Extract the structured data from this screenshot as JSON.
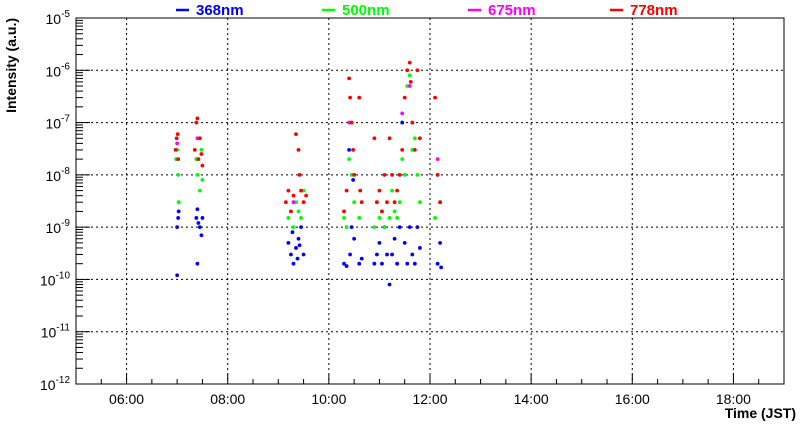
{
  "chart_data": {
    "type": "scatter",
    "xlabel": "Time (JST)",
    "ylabel": "Intensity (a.u.)",
    "x_unit": "hours JST",
    "xlim": [
      5.0,
      19.0
    ],
    "ylim": [
      1e-12,
      1e-05
    ],
    "y_scale": "log",
    "grid": true,
    "legend_position": "top",
    "x_ticks": [
      {
        "value": 6,
        "label": "06:00"
      },
      {
        "value": 8,
        "label": "08:00"
      },
      {
        "value": 10,
        "label": "10:00"
      },
      {
        "value": 12,
        "label": "12:00"
      },
      {
        "value": 14,
        "label": "14:00"
      },
      {
        "value": 16,
        "label": "16:00"
      },
      {
        "value": 18,
        "label": "18:00"
      }
    ],
    "y_ticks": [
      {
        "value": 1e-12,
        "exp": "-12",
        "base": "10"
      },
      {
        "value": 1e-11,
        "exp": "-11",
        "base": "10"
      },
      {
        "value": 1e-10,
        "exp": "-10",
        "base": "10"
      },
      {
        "value": 1e-09,
        "exp": "-9",
        "base": "10"
      },
      {
        "value": 1e-08,
        "exp": "-8",
        "base": "10"
      },
      {
        "value": 1e-07,
        "exp": "-7",
        "base": "10"
      },
      {
        "value": 1e-06,
        "exp": "-6",
        "base": "10"
      },
      {
        "value": 1e-05,
        "exp": "-5",
        "base": "10"
      }
    ],
    "series": [
      {
        "name": "368nm",
        "color": "#0000ff",
        "points": [
          [
            7.0,
            1.2e-10
          ],
          [
            7.0,
            1e-09
          ],
          [
            7.03,
            2e-09
          ],
          [
            7.02,
            1.5e-09
          ],
          [
            7.4,
            2e-10
          ],
          [
            7.38,
            1.5e-09
          ],
          [
            7.42,
            1.2e-09
          ],
          [
            7.45,
            1e-09
          ],
          [
            7.48,
            7e-10
          ],
          [
            7.5,
            1.5e-09
          ],
          [
            7.4,
            2.2e-09
          ],
          [
            9.2,
            5e-10
          ],
          [
            9.25,
            3e-10
          ],
          [
            9.3,
            2e-10
          ],
          [
            9.35,
            4e-10
          ],
          [
            9.4,
            6e-10
          ],
          [
            9.45,
            1e-09
          ],
          [
            9.5,
            3e-10
          ],
          [
            9.28,
            8e-10
          ],
          [
            9.38,
            2.5e-10
          ],
          [
            9.42,
            4.5e-10
          ],
          [
            10.3,
            2e-10
          ],
          [
            10.35,
            1.8e-10
          ],
          [
            10.4,
            3e-08
          ],
          [
            10.45,
            1e-09
          ],
          [
            10.5,
            6e-10
          ],
          [
            10.42,
            3e-10
          ],
          [
            10.48,
            8e-09
          ],
          [
            10.6,
            2e-10
          ],
          [
            10.65,
            2.5e-10
          ],
          [
            10.9,
            2e-10
          ],
          [
            10.95,
            3e-10
          ],
          [
            11.0,
            5e-10
          ],
          [
            11.05,
            2e-10
          ],
          [
            11.1,
            1e-09
          ],
          [
            11.15,
            3e-10
          ],
          [
            11.2,
            8e-11
          ],
          [
            11.25,
            3e-10
          ],
          [
            11.3,
            6e-10
          ],
          [
            11.35,
            2e-10
          ],
          [
            11.4,
            1e-09
          ],
          [
            11.45,
            1e-07
          ],
          [
            11.5,
            5e-10
          ],
          [
            11.55,
            2e-10
          ],
          [
            11.6,
            1e-09
          ],
          [
            11.65,
            3e-10
          ],
          [
            11.7,
            2e-10
          ],
          [
            11.75,
            1e-09
          ],
          [
            11.8,
            4e-10
          ],
          [
            12.15,
            2e-10
          ],
          [
            12.2,
            5e-10
          ],
          [
            12.22,
            1.7e-10
          ]
        ]
      },
      {
        "name": "500nm",
        "color": "#00ff00",
        "points": [
          [
            6.98,
            2e-08
          ],
          [
            7.0,
            3e-08
          ],
          [
            7.02,
            1e-08
          ],
          [
            7.03,
            3e-09
          ],
          [
            7.38,
            2e-08
          ],
          [
            7.4,
            1e-08
          ],
          [
            7.45,
            5e-09
          ],
          [
            7.48,
            3e-08
          ],
          [
            7.5,
            8e-09
          ],
          [
            9.2,
            1.5e-09
          ],
          [
            9.25,
            2e-09
          ],
          [
            9.3,
            1e-09
          ],
          [
            9.35,
            3e-09
          ],
          [
            9.4,
            2e-09
          ],
          [
            9.45,
            1.5e-09
          ],
          [
            9.5,
            5e-09
          ],
          [
            10.3,
            1.5e-09
          ],
          [
            10.35,
            1e-09
          ],
          [
            10.4,
            2e-08
          ],
          [
            10.45,
            1e-08
          ],
          [
            10.5,
            3e-09
          ],
          [
            10.6,
            1.5e-09
          ],
          [
            10.9,
            1e-09
          ],
          [
            10.95,
            3e-09
          ],
          [
            11.0,
            1.5e-09
          ],
          [
            11.05,
            2e-09
          ],
          [
            11.1,
            1e-09
          ],
          [
            11.2,
            1.5e-09
          ],
          [
            11.25,
            5e-09
          ],
          [
            11.3,
            2e-09
          ],
          [
            11.35,
            1.5e-09
          ],
          [
            11.4,
            3e-09
          ],
          [
            11.45,
            2e-08
          ],
          [
            11.5,
            1e-08
          ],
          [
            11.55,
            5e-07
          ],
          [
            11.6,
            8e-07
          ],
          [
            11.65,
            3e-08
          ],
          [
            11.7,
            5e-08
          ],
          [
            11.75,
            1e-08
          ],
          [
            11.8,
            3e-09
          ],
          [
            12.1,
            1.5e-09
          ],
          [
            12.15,
            1e-08
          ],
          [
            12.2,
            3e-09
          ]
        ]
      },
      {
        "name": "675nm",
        "color": "#ff00ff",
        "points": [
          [
            7.0,
            4e-08
          ],
          [
            7.4,
            5e-08
          ],
          [
            9.3,
            3e-09
          ],
          [
            10.4,
            1e-07
          ],
          [
            11.45,
            1.5e-07
          ],
          [
            11.6,
            5e-07
          ],
          [
            12.15,
            2e-08
          ]
        ]
      },
      {
        "name": "778nm",
        "color": "#ff0000",
        "points": [
          [
            6.97,
            3e-08
          ],
          [
            6.99,
            5e-08
          ],
          [
            7.01,
            6e-08
          ],
          [
            7.02,
            2e-08
          ],
          [
            7.35,
            3e-08
          ],
          [
            7.38,
            1e-07
          ],
          [
            7.4,
            1.2e-07
          ],
          [
            7.42,
            2e-08
          ],
          [
            7.45,
            5e-08
          ],
          [
            7.48,
            2.5e-08
          ],
          [
            7.5,
            1.5e-08
          ],
          [
            9.15,
            3e-09
          ],
          [
            9.2,
            5e-09
          ],
          [
            9.25,
            2e-09
          ],
          [
            9.3,
            4e-09
          ],
          [
            9.35,
            6e-08
          ],
          [
            9.4,
            3e-08
          ],
          [
            9.42,
            1e-08
          ],
          [
            9.45,
            5e-09
          ],
          [
            9.5,
            3e-09
          ],
          [
            9.55,
            4e-09
          ],
          [
            10.3,
            2e-09
          ],
          [
            10.35,
            5e-09
          ],
          [
            10.4,
            7e-07
          ],
          [
            10.42,
            3e-07
          ],
          [
            10.45,
            1e-07
          ],
          [
            10.48,
            3e-08
          ],
          [
            10.5,
            1e-08
          ],
          [
            10.6,
            3e-07
          ],
          [
            10.62,
            5e-09
          ],
          [
            10.65,
            3e-09
          ],
          [
            10.9,
            5e-08
          ],
          [
            10.95,
            3e-09
          ],
          [
            11.0,
            5e-09
          ],
          [
            11.05,
            2e-09
          ],
          [
            11.1,
            1e-08
          ],
          [
            11.15,
            3e-09
          ],
          [
            11.2,
            5e-08
          ],
          [
            11.25,
            1e-08
          ],
          [
            11.3,
            3e-09
          ],
          [
            11.35,
            5e-09
          ],
          [
            11.4,
            1e-08
          ],
          [
            11.45,
            3e-08
          ],
          [
            11.5,
            3e-07
          ],
          [
            11.55,
            1e-06
          ],
          [
            11.6,
            1.4e-06
          ],
          [
            11.62,
            6e-07
          ],
          [
            11.65,
            1e-07
          ],
          [
            11.7,
            3e-08
          ],
          [
            11.75,
            1e-06
          ],
          [
            11.8,
            5e-08
          ],
          [
            12.1,
            3e-07
          ],
          [
            12.15,
            1e-08
          ],
          [
            12.2,
            3e-09
          ]
        ]
      }
    ]
  }
}
